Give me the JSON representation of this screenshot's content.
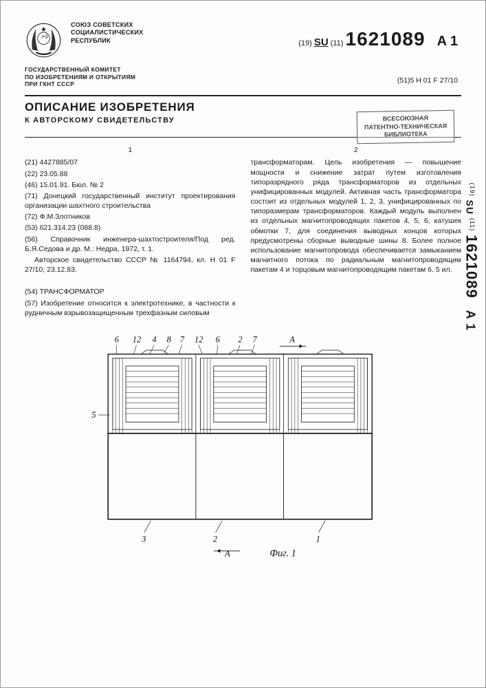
{
  "header": {
    "org_line1": "СОЮЗ СОВЕТСКИХ",
    "org_line2": "СОЦИАЛИСТИЧЕСКИХ",
    "org_line3": "РЕСПУБЛИК",
    "country_prefix": "(19)",
    "country": "SU",
    "code_prefix": "(11)",
    "number": "1621089",
    "kind": "A 1",
    "committee_line1": "ГОСУДАРСТВЕННЫЙ КОМИТЕТ",
    "committee_line2": "ПО ИЗОБРЕТЕНИЯМ И ОТКРЫТИЯМ",
    "committee_line3": "ПРИ ГКНТ СССР",
    "ipc_prefix": "(51)5",
    "ipc": "H 01 F 27/10"
  },
  "title_block": {
    "title": "ОПИСАНИЕ ИЗОБРЕТЕНИЯ",
    "subtitle": "К АВТОРСКОМУ СВИДЕТЕЛЬСТВУ"
  },
  "stamp": {
    "l1": "ВСЕСОЮЗНАЯ",
    "l2": "ПАТЕНТНО-ТЕХНИЧЕСКАЯ",
    "l3": "БИБЛИОТЕКА"
  },
  "col1": {
    "num": "1",
    "lines": [
      "(21) 4427885/07",
      "(22) 23.05.88",
      "(46) 15.01.91. Бюл. № 2",
      "(71) Донецкий государственный институт проектирования организации шахтного строительства",
      "(72) Ф.М.Злотников",
      "(53) 621.314.23 (088.8)",
      "(56) Справочник инженера-шахтостроителя/Под ред. Б.Я.Седова и др. М.: Недра, 1972, т. 1.",
      "Авторское свидетельство СССР № 1164794, кл. H 01 F 27/10, 23.12.83.",
      "",
      "(54) ТРАНСФОРМАТОР",
      "(57) Изобретение относится к электротехнике, в частности к рудничным взрывозащищенным трехфазным силовым"
    ]
  },
  "col2": {
    "num": "2",
    "text": "трансформаторам. Цель изобретения — повышение мощности и снижение затрат путем изготовления типоразрядного ряда трансформаторов из отдельных унифицированных модулей. Активная часть трансформатора состоит из отдельных модулей 1, 2, 3, унифицированных по типоразмерам трансформаторов. Каждый модуль выполнен из отдельных магнитопроводящих пакетов 4, 5, 6, катушек обмотки 7, для соединения выводных концов которых предусмотрены сборные выводные шины 8. Более полное использование магнитопровода обеспечивается замыканием магнитного потока по радиальным магнитопроводящим пакетам 4 и торцовым магнитопроводящим пакетам 6. 5 ил."
  },
  "figure": {
    "top_labels": [
      "6",
      "12",
      "4",
      "8",
      "7",
      "12",
      "6",
      "2",
      "7"
    ],
    "section_marker": "A",
    "left_label": "5",
    "bottom_labels": [
      "3",
      "2",
      "1"
    ],
    "bottom_section": "A",
    "caption": "Фиг. 1"
  },
  "side": {
    "country": "SU",
    "small": "(11)",
    "number": "1621089",
    "kind": "A 1"
  }
}
